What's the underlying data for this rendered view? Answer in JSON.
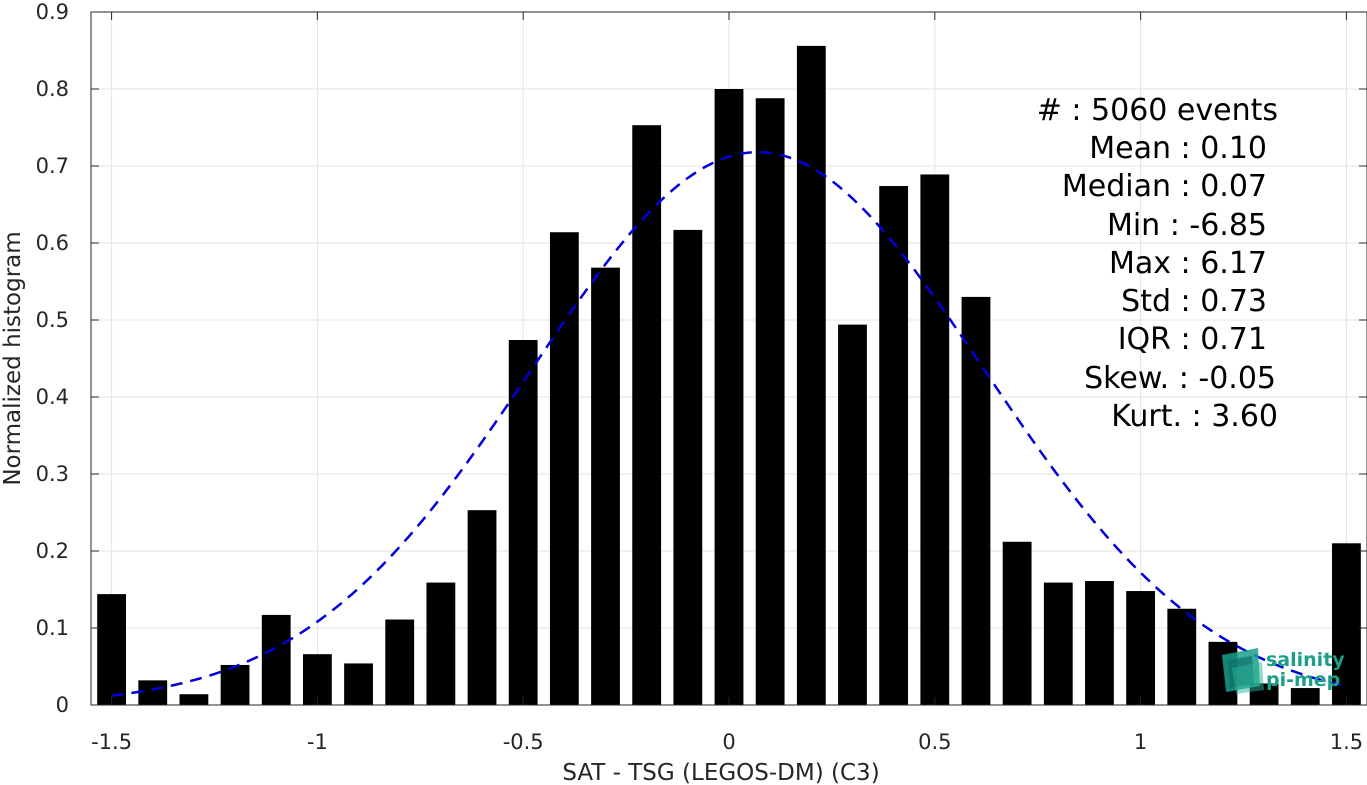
{
  "chart_data": {
    "type": "bar",
    "xlabel": "SAT - TSG (LEGOS-DM) (C3)",
    "ylabel": "Normalized histogram",
    "xlim": [
      -1.55,
      1.55
    ],
    "ylim": [
      0,
      0.9
    ],
    "grid": true,
    "xticks": [
      -1.5,
      -1,
      -0.5,
      0,
      0.5,
      1,
      1.5
    ],
    "xtick_labels": [
      "-1.5",
      "-1",
      "-0.5",
      "0",
      "0.5",
      "1",
      "1.5"
    ],
    "yticks": [
      0,
      0.1,
      0.2,
      0.3,
      0.4,
      0.5,
      0.6,
      0.7,
      0.8,
      0.9
    ],
    "ytick_labels": [
      "0",
      "0.1",
      "0.2",
      "0.3",
      "0.4",
      "0.5",
      "0.6",
      "0.7",
      "0.8",
      "0.9"
    ],
    "bar_width": 0.07,
    "bar_color": "#000000",
    "x": [
      -1.5,
      -1.4,
      -1.3,
      -1.2,
      -1.1,
      -1.0,
      -0.9,
      -0.8,
      -0.7,
      -0.6,
      -0.5,
      -0.4,
      -0.3,
      -0.2,
      -0.1,
      0.0,
      0.1,
      0.2,
      0.3,
      0.4,
      0.5,
      0.6,
      0.7,
      0.8,
      0.9,
      1.0,
      1.1,
      1.2,
      1.3,
      1.4,
      1.5
    ],
    "values": [
      0.144,
      0.032,
      0.014,
      0.052,
      0.117,
      0.066,
      0.054,
      0.111,
      0.159,
      0.253,
      0.474,
      0.614,
      0.568,
      0.753,
      0.617,
      0.8,
      0.788,
      0.856,
      0.494,
      0.674,
      0.689,
      0.53,
      0.212,
      0.159,
      0.161,
      0.148,
      0.125,
      0.082,
      0.028,
      0.022,
      0.21
    ],
    "fit_curve": {
      "type": "normal",
      "mean": 0.07,
      "std": 0.55,
      "peak": 0.718,
      "color": "#0000dd",
      "style": "dashed"
    },
    "annotations": [
      "#  : 5060 events",
      "Mean : 0.10",
      "Median : 0.07",
      "Min : -6.85",
      "Max : 6.17",
      "Std : 0.73",
      "IQR : 0.71",
      "Skew. : -0.05",
      "Kurt. : 3.60"
    ]
  },
  "logo": {
    "line1": "salinity",
    "line2": "pi-mep",
    "color": "#1a9f8a"
  }
}
